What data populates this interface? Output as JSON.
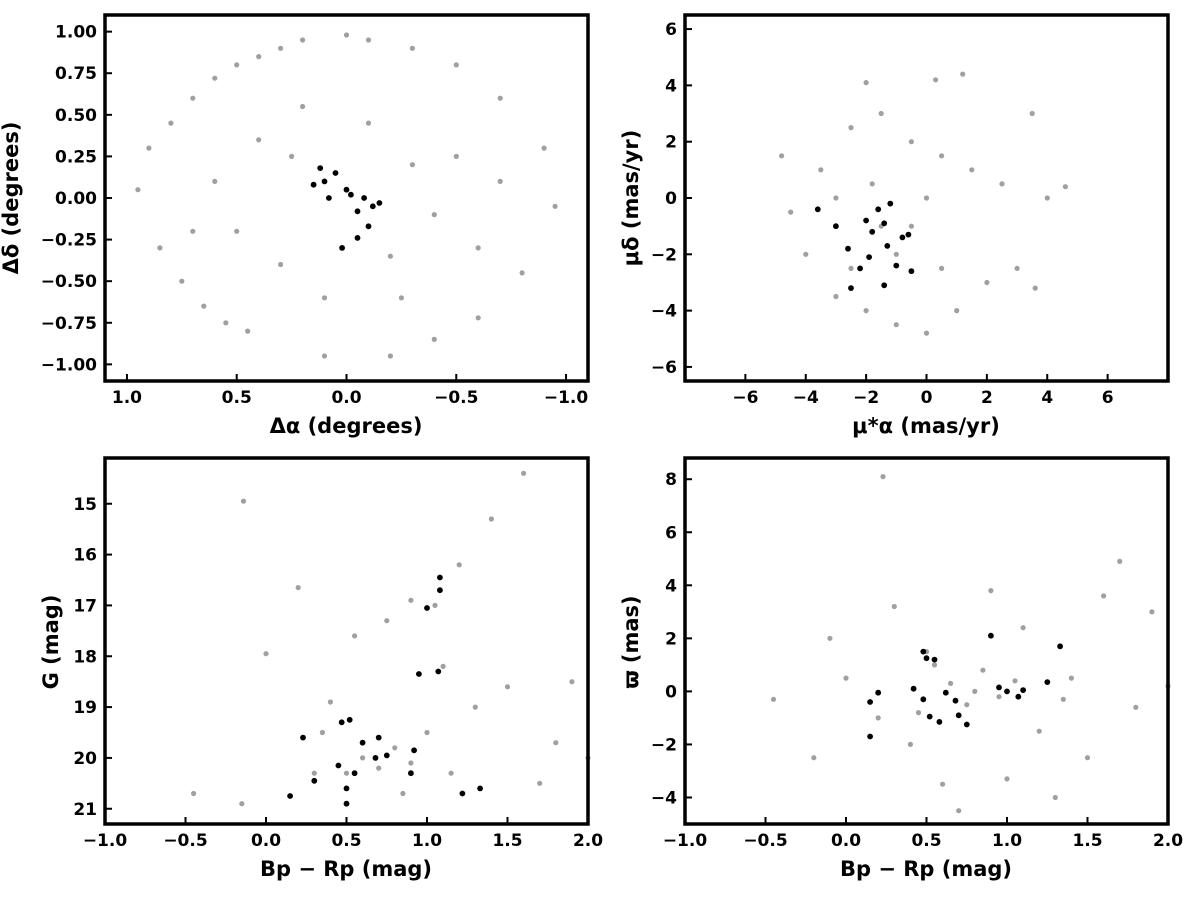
{
  "colors": {
    "field": "#a0a0a0",
    "member": "#000000",
    "axes": "#000000"
  },
  "chart_data": [
    {
      "type": "scatter",
      "id": "sky",
      "xlabel": "Δα (degrees)",
      "ylabel": "Δδ (degrees)",
      "xlim": [
        1.1,
        -1.1
      ],
      "ylim": [
        -1.1,
        1.1
      ],
      "xticks": [
        1.0,
        0.5,
        0.0,
        -0.5,
        -1.0
      ],
      "xtick_labels": [
        "1.0",
        "0.5",
        "0.0",
        "−0.5",
        "−1.0"
      ],
      "yticks": [
        -1.0,
        -0.75,
        -0.5,
        -0.25,
        0.0,
        0.25,
        0.5,
        0.75,
        1.0
      ],
      "ytick_labels": [
        "−1.00",
        "−0.75",
        "−0.50",
        "−0.25",
        "0.00",
        "0.25",
        "0.50",
        "0.75",
        "1.00"
      ],
      "grid": false,
      "series": [
        {
          "color": "#a0a0a0",
          "points": [
            [
              0.95,
              0.05
            ],
            [
              0.9,
              0.3
            ],
            [
              0.85,
              -0.3
            ],
            [
              0.8,
              0.45
            ],
            [
              0.75,
              -0.5
            ],
            [
              0.7,
              0.6
            ],
            [
              0.65,
              -0.65
            ],
            [
              0.6,
              0.72
            ],
            [
              0.55,
              -0.75
            ],
            [
              0.5,
              0.8
            ],
            [
              0.45,
              -0.8
            ],
            [
              0.4,
              0.85
            ],
            [
              0.3,
              0.9
            ],
            [
              0.2,
              0.95
            ],
            [
              0.1,
              -0.95
            ],
            [
              0.0,
              0.98
            ],
            [
              -0.1,
              0.95
            ],
            [
              -0.2,
              -0.95
            ],
            [
              -0.3,
              0.9
            ],
            [
              -0.4,
              -0.85
            ],
            [
              -0.5,
              0.8
            ],
            [
              -0.6,
              -0.72
            ],
            [
              -0.7,
              0.6
            ],
            [
              -0.8,
              -0.45
            ],
            [
              -0.9,
              0.3
            ],
            [
              -0.95,
              -0.05
            ],
            [
              0.6,
              0.1
            ],
            [
              0.5,
              -0.2
            ],
            [
              0.4,
              0.35
            ],
            [
              0.3,
              -0.4
            ],
            [
              0.2,
              0.55
            ],
            [
              0.1,
              -0.6
            ],
            [
              -0.1,
              0.45
            ],
            [
              -0.2,
              -0.35
            ],
            [
              -0.3,
              0.2
            ],
            [
              -0.4,
              -0.1
            ],
            [
              -0.5,
              0.25
            ],
            [
              -0.6,
              -0.3
            ],
            [
              0.7,
              -0.2
            ],
            [
              -0.7,
              0.1
            ],
            [
              0.25,
              0.25
            ],
            [
              -0.25,
              -0.6
            ]
          ]
        },
        {
          "color": "#000000",
          "points": [
            [
              0.12,
              0.18
            ],
            [
              0.1,
              0.1
            ],
            [
              0.05,
              0.15
            ],
            [
              0.0,
              0.05
            ],
            [
              -0.02,
              0.02
            ],
            [
              -0.05,
              -0.08
            ],
            [
              -0.08,
              0.0
            ],
            [
              -0.12,
              -0.05
            ],
            [
              -0.15,
              -0.03
            ],
            [
              0.08,
              0.0
            ],
            [
              0.02,
              -0.3
            ],
            [
              -0.05,
              -0.24
            ],
            [
              0.15,
              0.08
            ],
            [
              -0.1,
              -0.17
            ]
          ]
        }
      ]
    },
    {
      "type": "scatter",
      "id": "proper-motion",
      "xlabel": "μ*α (mas/yr)",
      "ylabel": "μδ (mas/yr)",
      "xlim": [
        -8,
        8
      ],
      "ylim": [
        -6.5,
        6.5
      ],
      "xticks": [
        -6,
        -4,
        -2,
        0,
        2,
        4,
        6
      ],
      "xtick_labels": [
        "−6",
        "−4",
        "−2",
        "0",
        "2",
        "4",
        "6"
      ],
      "yticks": [
        -6,
        -4,
        -2,
        0,
        2,
        4,
        6
      ],
      "ytick_labels": [
        "−6",
        "−4",
        "−2",
        "0",
        "2",
        "4",
        "6"
      ],
      "grid": false,
      "series": [
        {
          "color": "#a0a0a0",
          "points": [
            [
              -4.5,
              -0.5
            ],
            [
              -4.0,
              -2.0
            ],
            [
              -3.5,
              1.0
            ],
            [
              -3.0,
              -3.5
            ],
            [
              -2.5,
              2.5
            ],
            [
              -2.0,
              -4.0
            ],
            [
              -1.5,
              3.0
            ],
            [
              -1.0,
              -4.5
            ],
            [
              -0.5,
              2.0
            ],
            [
              0.0,
              -4.8
            ],
            [
              0.5,
              1.5
            ],
            [
              1.0,
              -4.0
            ],
            [
              1.5,
              1.0
            ],
            [
              2.0,
              -3.0
            ],
            [
              2.5,
              0.5
            ],
            [
              3.0,
              -2.5
            ],
            [
              3.5,
              3.0
            ],
            [
              4.0,
              0.0
            ],
            [
              -2.0,
              4.1
            ],
            [
              0.3,
              4.2
            ],
            [
              1.2,
              4.4
            ],
            [
              -1.5,
              -1.0
            ],
            [
              -1.0,
              -2.0
            ],
            [
              -0.5,
              -1.0
            ],
            [
              0.0,
              0.0
            ],
            [
              -2.5,
              -2.5
            ],
            [
              -3.0,
              0.0
            ],
            [
              0.5,
              -2.5
            ],
            [
              -1.8,
              0.5
            ],
            [
              -4.8,
              1.5
            ],
            [
              4.6,
              0.4
            ],
            [
              3.6,
              -3.2
            ]
          ]
        },
        {
          "color": "#000000",
          "points": [
            [
              -3.6,
              -0.4
            ],
            [
              -3.0,
              -1.0
            ],
            [
              -2.6,
              -1.8
            ],
            [
              -2.5,
              -3.2
            ],
            [
              -2.2,
              -2.5
            ],
            [
              -2.0,
              -0.8
            ],
            [
              -1.9,
              -2.1
            ],
            [
              -1.8,
              -1.2
            ],
            [
              -1.6,
              -0.4
            ],
            [
              -1.4,
              -0.9
            ],
            [
              -1.3,
              -1.7
            ],
            [
              -1.2,
              -0.2
            ],
            [
              -1.0,
              -2.4
            ],
            [
              -0.8,
              -1.4
            ],
            [
              -0.5,
              -2.6
            ],
            [
              -1.4,
              -3.1
            ],
            [
              -0.6,
              -1.3
            ]
          ]
        }
      ]
    },
    {
      "type": "scatter",
      "id": "cmd",
      "xlabel": "Bp − Rp (mag)",
      "ylabel": "G (mag)",
      "xlim": [
        -1.0,
        2.0
      ],
      "ylim": [
        21.3,
        14.1
      ],
      "xticks": [
        -1.0,
        -0.5,
        0.0,
        0.5,
        1.0,
        1.5,
        2.0
      ],
      "xtick_labels": [
        "−1.0",
        "−0.5",
        "0.0",
        "0.5",
        "1.0",
        "1.5",
        "2.0"
      ],
      "yticks": [
        15,
        16,
        17,
        18,
        19,
        20,
        21
      ],
      "ytick_labels": [
        "15",
        "16",
        "17",
        "18",
        "19",
        "20",
        "21"
      ],
      "grid": false,
      "series": [
        {
          "color": "#a0a0a0",
          "points": [
            [
              -0.45,
              20.7
            ],
            [
              -0.15,
              20.9
            ],
            [
              -0.14,
              14.95
            ],
            [
              0.0,
              17.95
            ],
            [
              0.2,
              16.65
            ],
            [
              0.3,
              20.3
            ],
            [
              0.5,
              20.3
            ],
            [
              0.6,
              20.0
            ],
            [
              0.7,
              20.2
            ],
            [
              0.8,
              19.8
            ],
            [
              0.9,
              20.1
            ],
            [
              1.0,
              19.5
            ],
            [
              1.1,
              18.2
            ],
            [
              1.2,
              16.2
            ],
            [
              1.3,
              19.0
            ],
            [
              1.4,
              15.3
            ],
            [
              1.5,
              18.6
            ],
            [
              1.6,
              14.4
            ],
            [
              1.7,
              20.5
            ],
            [
              1.8,
              19.7
            ],
            [
              1.9,
              18.5
            ],
            [
              2.0,
              20.0
            ],
            [
              0.4,
              18.9
            ],
            [
              0.55,
              17.6
            ],
            [
              0.75,
              17.3
            ],
            [
              0.9,
              16.9
            ],
            [
              1.05,
              17.0
            ],
            [
              0.35,
              19.5
            ],
            [
              0.85,
              20.7
            ],
            [
              1.15,
              20.3
            ]
          ]
        },
        {
          "color": "#000000",
          "points": [
            [
              0.15,
              20.75
            ],
            [
              0.3,
              20.45
            ],
            [
              0.45,
              20.15
            ],
            [
              0.5,
              20.9
            ],
            [
              0.5,
              20.6
            ],
            [
              0.55,
              20.3
            ],
            [
              0.6,
              19.7
            ],
            [
              0.7,
              19.6
            ],
            [
              0.75,
              19.95
            ],
            [
              0.9,
              20.3
            ],
            [
              0.92,
              19.85
            ],
            [
              0.95,
              18.35
            ],
            [
              1.0,
              17.05
            ],
            [
              1.07,
              18.3
            ],
            [
              1.08,
              16.7
            ],
            [
              1.08,
              16.45
            ],
            [
              1.22,
              20.7
            ],
            [
              1.33,
              20.6
            ],
            [
              0.23,
              19.6
            ],
            [
              0.47,
              19.3
            ],
            [
              0.52,
              19.25
            ],
            [
              0.68,
              20.0
            ]
          ]
        }
      ]
    },
    {
      "type": "scatter",
      "id": "parallax",
      "xlabel": "Bp − Rp (mag)",
      "ylabel": "ϖ (mas)",
      "xlim": [
        -1.0,
        2.0
      ],
      "ylim": [
        -5.0,
        8.8
      ],
      "xticks": [
        -1.0,
        -0.5,
        0.0,
        0.5,
        1.0,
        1.5,
        2.0
      ],
      "xtick_labels": [
        "−1.0",
        "−0.5",
        "0.0",
        "0.5",
        "1.0",
        "1.5",
        "2.0"
      ],
      "yticks": [
        -4,
        -2,
        0,
        2,
        4,
        6,
        8
      ],
      "ytick_labels": [
        "−4",
        "−2",
        "0",
        "2",
        "4",
        "6",
        "8"
      ],
      "grid": false,
      "series": [
        {
          "color": "#a0a0a0",
          "points": [
            [
              -0.45,
              -0.3
            ],
            [
              -0.2,
              -2.5
            ],
            [
              -0.1,
              2.0
            ],
            [
              0.0,
              0.5
            ],
            [
              0.2,
              -1.0
            ],
            [
              0.23,
              8.1
            ],
            [
              0.3,
              3.2
            ],
            [
              0.4,
              -2.0
            ],
            [
              0.5,
              1.5
            ],
            [
              0.6,
              -3.5
            ],
            [
              0.7,
              -4.5
            ],
            [
              0.8,
              0.0
            ],
            [
              0.9,
              3.8
            ],
            [
              1.0,
              -3.3
            ],
            [
              1.1,
              2.4
            ],
            [
              1.2,
              -1.5
            ],
            [
              1.3,
              -4.0
            ],
            [
              1.4,
              0.5
            ],
            [
              1.5,
              -2.5
            ],
            [
              1.6,
              3.6
            ],
            [
              1.7,
              4.9
            ],
            [
              1.8,
              -0.6
            ],
            [
              1.9,
              3.0
            ],
            [
              2.0,
              0.2
            ],
            [
              0.65,
              0.3
            ],
            [
              0.75,
              -0.5
            ],
            [
              0.85,
              0.8
            ],
            [
              0.95,
              -0.2
            ],
            [
              1.05,
              0.4
            ],
            [
              0.55,
              1.0
            ],
            [
              0.45,
              -0.8
            ],
            [
              1.35,
              -0.3
            ]
          ]
        },
        {
          "color": "#000000",
          "points": [
            [
              0.15,
              -1.7
            ],
            [
              0.15,
              -0.4
            ],
            [
              0.42,
              0.1
            ],
            [
              0.48,
              1.5
            ],
            [
              0.5,
              1.25
            ],
            [
              0.52,
              -0.95
            ],
            [
              0.55,
              1.2
            ],
            [
              0.58,
              -1.15
            ],
            [
              0.62,
              -0.05
            ],
            [
              0.7,
              -0.9
            ],
            [
              0.75,
              -1.25
            ],
            [
              0.9,
              2.1
            ],
            [
              0.95,
              0.15
            ],
            [
              1.0,
              0.0
            ],
            [
              1.07,
              -0.2
            ],
            [
              1.1,
              0.05
            ],
            [
              1.25,
              0.35
            ],
            [
              1.33,
              1.7
            ],
            [
              0.2,
              -0.05
            ],
            [
              0.48,
              -0.3
            ],
            [
              0.68,
              -0.35
            ]
          ]
        }
      ]
    }
  ]
}
